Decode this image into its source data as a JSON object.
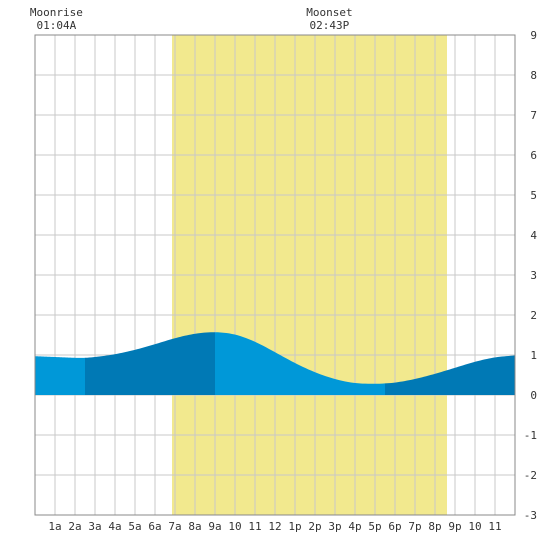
{
  "chart_data": {
    "type": "area",
    "title": "",
    "xlabel": "",
    "ylabel": "",
    "xlim": [
      0,
      24
    ],
    "ylim": [
      -3,
      9
    ],
    "grid": true,
    "y_ticks": [
      "-3",
      "-2",
      "-1",
      "0",
      "1",
      "2",
      "3",
      "4",
      "5",
      "6",
      "7",
      "8",
      "9"
    ],
    "x_ticks": [
      "1a",
      "2a",
      "3a",
      "4a",
      "5a",
      "6a",
      "7a",
      "8a",
      "9a",
      "10",
      "11",
      "12",
      "1p",
      "2p",
      "3p",
      "4p",
      "5p",
      "6p",
      "7p",
      "8p",
      "9p",
      "10",
      "11"
    ],
    "daylight": [
      6.85,
      20.6
    ],
    "series": [
      {
        "x": [
          0,
          1,
          2,
          2.5,
          3,
          4,
          5,
          6,
          7,
          8,
          9,
          10,
          11,
          12,
          13,
          14,
          15,
          16,
          17,
          17.5,
          18,
          19,
          20,
          21,
          22,
          23,
          24
        ],
        "y": [
          0.97,
          0.95,
          0.93,
          0.93,
          0.95,
          1.02,
          1.13,
          1.27,
          1.42,
          1.53,
          1.57,
          1.51,
          1.33,
          1.07,
          0.8,
          0.57,
          0.4,
          0.3,
          0.28,
          0.29,
          0.31,
          0.4,
          0.53,
          0.68,
          0.83,
          0.94,
          0.99
        ]
      }
    ],
    "bands": [
      {
        "x0": 0,
        "x1": 2.5,
        "shade": "light"
      },
      {
        "x0": 2.5,
        "x1": 9,
        "shade": "dark"
      },
      {
        "x0": 9,
        "x1": 17.5,
        "shade": "light"
      },
      {
        "x0": 17.5,
        "x1": 24,
        "shade": "dark"
      }
    ],
    "annotations": [
      {
        "label": "Moonrise",
        "time": "01:04A",
        "x": 1.07
      },
      {
        "label": "Moonset",
        "time": "02:43P",
        "x": 14.72
      }
    ]
  },
  "colors": {
    "daylight": "#f2e98e",
    "tide_light": "#0098d8",
    "tide_dark": "#0079b5",
    "grid": "#c8c8c8",
    "frame": "#888888",
    "text": "#333333"
  }
}
